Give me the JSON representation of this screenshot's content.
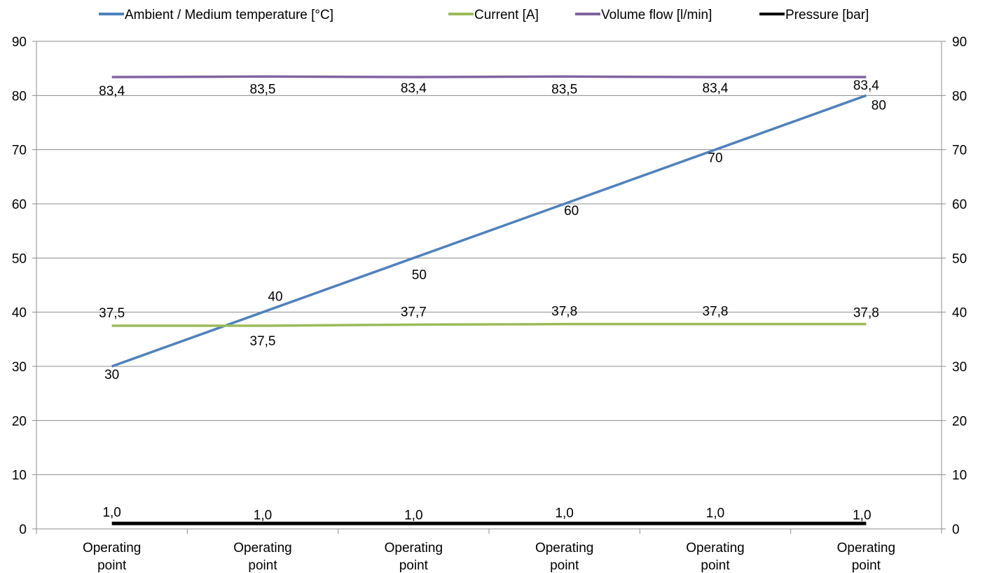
{
  "chart_data": {
    "type": "line",
    "categories": [
      "Operating\npoint",
      "Operating\npoint",
      "Operating\npoint",
      "Operating\npoint",
      "Operating\npoint",
      "Operating\npoint"
    ],
    "ylim": [
      0,
      90
    ],
    "y_ticks": [
      0,
      10,
      20,
      30,
      40,
      50,
      60,
      70,
      80,
      90
    ],
    "y2_ticks": [
      0,
      10,
      20,
      30,
      40,
      50,
      60,
      70,
      80,
      90
    ],
    "grid": true,
    "legend_position": "top",
    "series": [
      {
        "name": "Ambient / Medium temperature [°C]",
        "color": "#4F81BD",
        "values": [
          30,
          40,
          50,
          60,
          70,
          80
        ],
        "labels": [
          "30",
          "40",
          "50",
          "60",
          "70",
          "80"
        ]
      },
      {
        "name": "Current [A]",
        "color": "#9BBB59",
        "values": [
          37.5,
          37.5,
          37.7,
          37.8,
          37.8,
          37.8
        ],
        "labels": [
          "37,5",
          "37,5",
          "37,7",
          "37,8",
          "37,8",
          "37,8"
        ]
      },
      {
        "name": "Volume flow [l/min]",
        "color": "#8064A2",
        "values": [
          83.4,
          83.5,
          83.4,
          83.5,
          83.4,
          83.4
        ],
        "labels": [
          "83,4",
          "83,5",
          "83,4",
          "83,5",
          "83,4",
          "83,4"
        ]
      },
      {
        "name": "Pressure [bar]",
        "color": "#000000",
        "values": [
          1.0,
          1.0,
          1.0,
          1.0,
          1.0,
          1.0
        ],
        "labels": [
          "1,0",
          "1,0",
          "1,0",
          "1,0",
          "1,0",
          "1,0"
        ]
      }
    ]
  }
}
